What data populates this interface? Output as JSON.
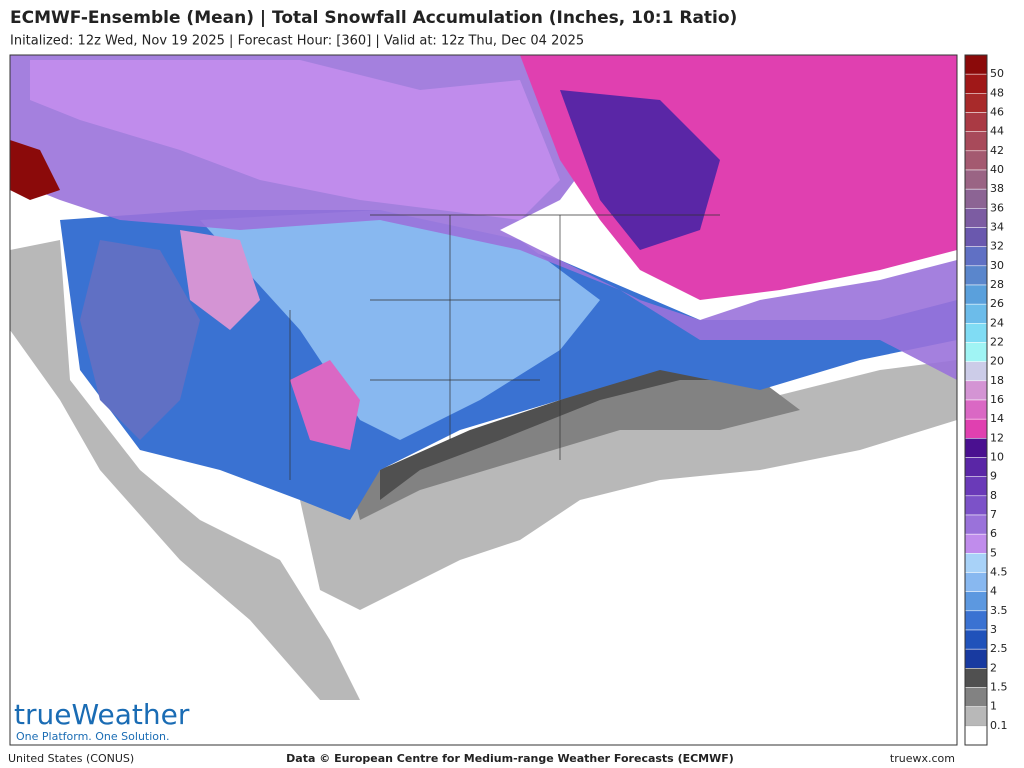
{
  "header": {
    "title": "ECMWF-Ensemble (Mean) | Total Snowfall Accumulation (Inches, 10:1 Ratio)",
    "subtitle": "Initalized: 12z Wed, Nov 19 2025  |  Forecast Hour: [360]  |  Valid at: 12z Thu, Dec 04 2025"
  },
  "legend": [
    {
      "value": 50,
      "color": "#8b0a0a"
    },
    {
      "value": 48,
      "color": "#a01818"
    },
    {
      "value": 46,
      "color": "#a82a2a"
    },
    {
      "value": 44,
      "color": "#aa3a44"
    },
    {
      "value": 42,
      "color": "#a84a5a"
    },
    {
      "value": 40,
      "color": "#a45a70"
    },
    {
      "value": 38,
      "color": "#9a6484"
    },
    {
      "value": 36,
      "color": "#8c6494"
    },
    {
      "value": 34,
      "color": "#7c5ca2"
    },
    {
      "value": 32,
      "color": "#6a58ae"
    },
    {
      "value": 30,
      "color": "#6070c4"
    },
    {
      "value": 28,
      "color": "#5a86cc"
    },
    {
      "value": 26,
      "color": "#5aa0dc"
    },
    {
      "value": 24,
      "color": "#6cbcea"
    },
    {
      "value": 22,
      "color": "#80dcf4"
    },
    {
      "value": 20,
      "color": "#a0f4f4"
    },
    {
      "value": 18,
      "color": "#cccce8"
    },
    {
      "value": 16,
      "color": "#d494d4"
    },
    {
      "value": 14,
      "color": "#da68c4"
    },
    {
      "value": 12,
      "color": "#e040b0"
    },
    {
      "value": 10,
      "color": "#4a1090"
    },
    {
      "value": 9,
      "color": "#5a26a6"
    },
    {
      "value": 8,
      "color": "#6a3ab8"
    },
    {
      "value": 7,
      "color": "#7c52c8"
    },
    {
      "value": 6,
      "color": "#9a72da"
    },
    {
      "value": 5,
      "color": "#c08cec"
    },
    {
      "value": 4.5,
      "color": "#a8d2f8"
    },
    {
      "value": 4,
      "color": "#88b8f0"
    },
    {
      "value": 3.5,
      "color": "#5c98e0"
    },
    {
      "value": 3,
      "color": "#3a72d2"
    },
    {
      "value": 2.5,
      "color": "#2052ba"
    },
    {
      "value": 2,
      "color": "#183aa0"
    },
    {
      "value": 1.5,
      "color": "#505050"
    },
    {
      "value": 1,
      "color": "#828282"
    },
    {
      "value": 0.1,
      "color": "#b8b8b8"
    }
  ],
  "logo": {
    "name": "trueWeather",
    "tagline": "One Platform. One Solution."
  },
  "footer": {
    "left": "United States (CONUS)",
    "center": "Data © European Centre for Medium-range Weather Forecasts (ECMWF)",
    "right": "truewx.com"
  }
}
